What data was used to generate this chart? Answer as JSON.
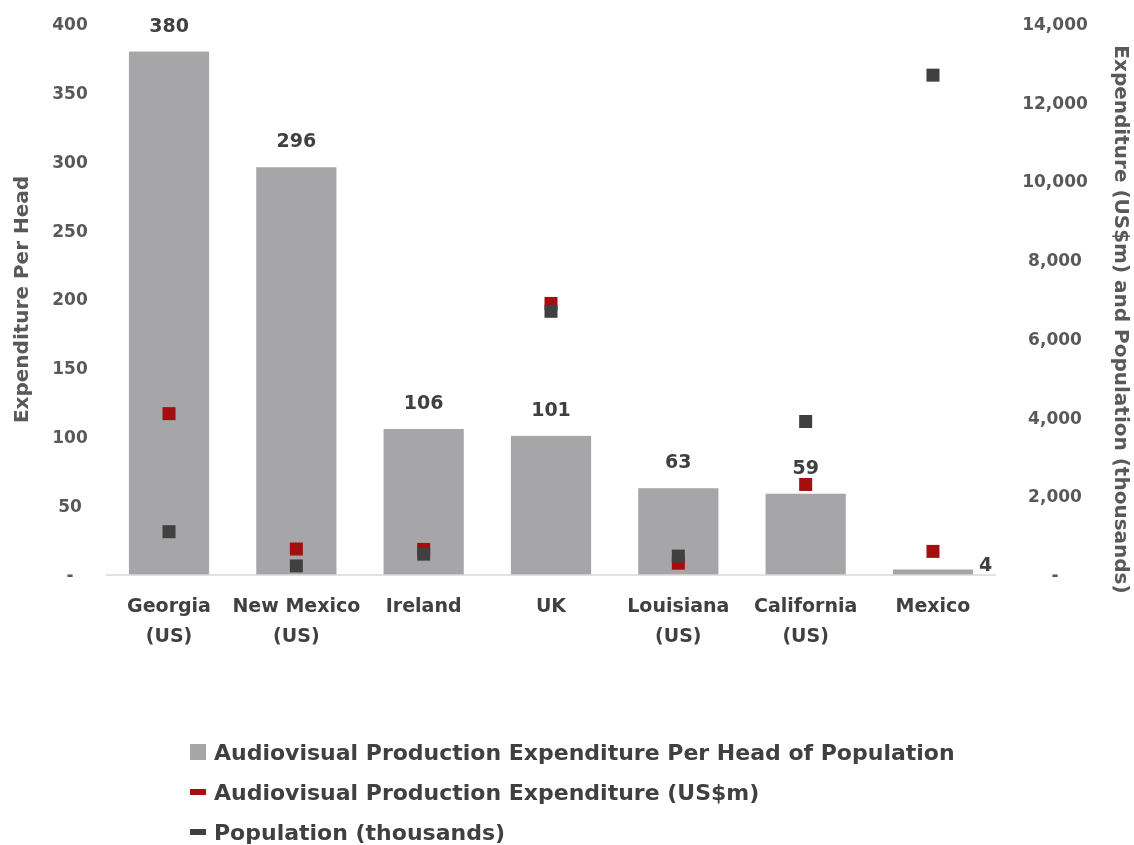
{
  "chart_data": {
    "type": "bar",
    "categories": [
      "Georgia (US)",
      "New Mexico (US)",
      "Ireland",
      "UK",
      "Louisiana (US)",
      "California (US)",
      "Mexico"
    ],
    "ylabel": "Expenditure Per Head",
    "y2label": "Expenditure (US$m) and Population (thousands)",
    "ylim": [
      0,
      400
    ],
    "yticks": [
      {
        "value": 0,
        "label": "-"
      },
      50,
      100,
      150,
      200,
      250,
      300,
      350,
      400
    ],
    "y2lim": [
      0,
      14000
    ],
    "y2ticks": [
      {
        "value": 0,
        "label": "-"
      },
      {
        "value": 2000,
        "label": "2,000"
      },
      {
        "value": 4000,
        "label": "4,000"
      },
      {
        "value": 6000,
        "label": "6,000"
      },
      {
        "value": 8000,
        "label": "8,000"
      },
      {
        "value": 10000,
        "label": "10,000"
      },
      {
        "value": 12000,
        "label": "12,000"
      },
      {
        "value": 14000,
        "label": "14,000"
      }
    ],
    "legend": "bottom",
    "grid": false,
    "series": [
      {
        "name": "Audiovisual Production Expenditure Per Head of Population",
        "color": "#a6a6a8",
        "values": [
          380,
          296,
          106,
          101,
          63,
          59,
          4
        ],
        "value_labels": [
          "380",
          "296",
          "106",
          "101",
          "63",
          "59",
          "4"
        ]
      },
      {
        "type": "scatter",
        "marker": "square",
        "axis": "y2",
        "name": "Audiovisual Production Expenditure (US$m)",
        "color": "#a50e0e",
        "values": [
          4100,
          660,
          650,
          6900,
          300,
          2300,
          600
        ]
      },
      {
        "type": "scatter",
        "marker": "square",
        "axis": "y2",
        "name": "Population (thousands)",
        "color": "#404040",
        "values": [
          1100,
          230,
          530,
          6700,
          480,
          3900,
          12700
        ]
      }
    ]
  }
}
